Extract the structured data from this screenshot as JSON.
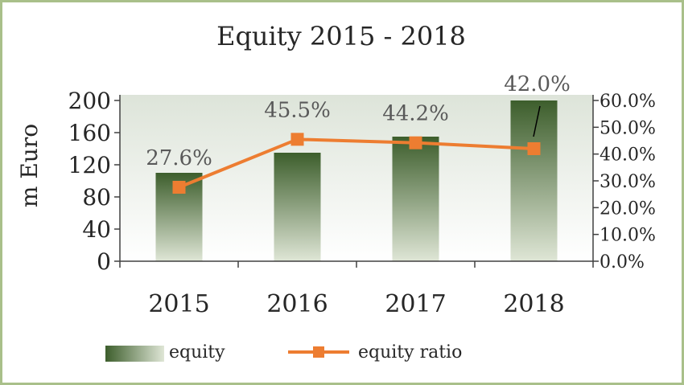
{
  "chart_data": {
    "type": "bar",
    "title": "Equity 2015 - 2018",
    "ylabel": "m Euro",
    "xlabel": "",
    "categories": [
      "2015",
      "2016",
      "2017",
      "2018"
    ],
    "series": [
      {
        "name": "equity",
        "type": "bar",
        "axis": "left",
        "values": [
          110,
          135,
          155,
          200
        ]
      },
      {
        "name": "equity ratio",
        "type": "line",
        "axis": "right",
        "values": [
          27.6,
          45.5,
          44.2,
          42.0
        ],
        "labels": [
          "27.6%",
          "45.5%",
          "44.2%",
          "42.0%"
        ]
      }
    ],
    "ylim": [
      0,
      200
    ],
    "yticks": [
      "0",
      "40",
      "80",
      "120",
      "160",
      "200"
    ],
    "y2lim": [
      0,
      60
    ],
    "y2ticks": [
      "0.0%",
      "10.0%",
      "20.0%",
      "30.0%",
      "40.0%",
      "50.0%",
      "60.0%"
    ],
    "legend_position": "bottom",
    "colors": {
      "bar_top": "#3d5e2c",
      "bar_bottom": "#dfe6d6",
      "line": "#ed7d31",
      "frame": "#a9c08a"
    }
  }
}
